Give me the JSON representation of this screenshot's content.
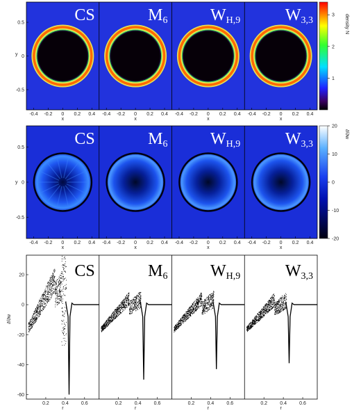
{
  "panel_titles": [
    {
      "main": "CS",
      "sub": ""
    },
    {
      "main": "M",
      "sub": "6"
    },
    {
      "main": "W",
      "sub": "H,9"
    },
    {
      "main": "W",
      "sub": "3,3"
    }
  ],
  "colors": {
    "density_background": "#2233dd",
    "vorticity_background": "#1a2ed8",
    "ring_outer": "#e8e050",
    "ring_core": "#ff6a00",
    "title_on_map": "#ffffff",
    "title_on_scatter": "#000000"
  },
  "chart_data": [
    {
      "type": "heatmap",
      "name": "density maps",
      "colorbar_label": "density N",
      "colorbar_ticks": [
        "1",
        "2",
        "3"
      ],
      "colorbar_range": [
        0,
        3.4
      ],
      "xlabel": "x",
      "ylabel": "y",
      "x_ticks": [
        "-0.4",
        "-0.2",
        "0",
        "0.2",
        "0.4"
      ],
      "y_ticks": [
        "0.5",
        "0",
        "-0.5"
      ],
      "xlim": [
        -0.5,
        0.5
      ],
      "ylim": [
        -0.8,
        0.8
      ],
      "ring_radius": 0.45,
      "panels": [
        "CS",
        "M6",
        "WH,9",
        "W3,3"
      ]
    },
    {
      "type": "heatmap",
      "name": "vorticity maps",
      "colorbar_label": "∂/∂w",
      "colorbar_ticks": [
        "20",
        "10",
        "0",
        "-10",
        "-20"
      ],
      "colorbar_range": [
        -20,
        20
      ],
      "xlabel": "x",
      "ylabel": "y",
      "x_ticks": [
        "-0.4",
        "-0.2",
        "0",
        "0.2",
        "0.4"
      ],
      "y_ticks": [
        "0.5",
        "0",
        "-0.5"
      ],
      "xlim": [
        -0.5,
        0.5
      ],
      "ylim": [
        -0.8,
        0.8
      ],
      "panels": [
        "CS",
        "M6",
        "WH,9",
        "W3,3"
      ]
    },
    {
      "type": "scatter",
      "name": "radial profiles",
      "xlabel": "r",
      "ylabel": "∂/∂w",
      "x_ticks": [
        "0.2",
        "0.4",
        "0.6"
      ],
      "y_ticks": [
        "20",
        "0",
        "-20",
        "-40",
        "-60"
      ],
      "xlim": [
        0,
        0.75
      ],
      "ylim": [
        -63,
        33
      ],
      "series": [
        {
          "panel": "CS",
          "min_at_r": 0.44,
          "min_value": -60,
          "max_value": 30
        },
        {
          "panel": "M6",
          "min_at_r": 0.46,
          "min_value": -50,
          "max_value": 12
        },
        {
          "panel": "WH,9",
          "min_at_r": 0.46,
          "min_value": -43,
          "max_value": 12
        },
        {
          "panel": "W3,3",
          "min_at_r": 0.46,
          "min_value": -39,
          "max_value": 11
        }
      ]
    }
  ]
}
